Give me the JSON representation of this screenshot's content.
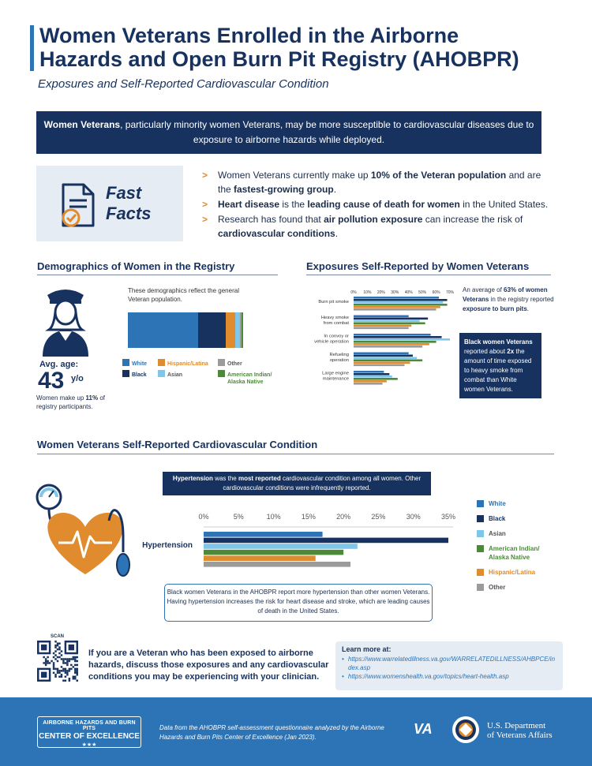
{
  "header": {
    "title_line1": "Women Veterans Enrolled in the Airborne",
    "title_line2": "Hazards and Open Burn Pit Registry (AHOBPR)",
    "subtitle": "Exposures and Self-Reported Cardiovascular Condition"
  },
  "intro": {
    "bold": "Women Veterans",
    "text": ", particularly minority women Veterans, may be more susceptible to cardiovascular diseases due to exposure to airborne hazards while deployed."
  },
  "fast_facts": {
    "title_line1": "Fast",
    "title_line2": "Facts",
    "icon": "document-check-icon",
    "items": [
      {
        "pre": "Women Veterans currently make up ",
        "bold1": "10% of the Veteran population",
        "mid": " and are the ",
        "bold2": "fastest-growing group",
        "post": "."
      },
      {
        "pre": "",
        "bold1": "Heart disease",
        "mid": " is the ",
        "bold2": "leading cause of death for women",
        "post": " in the United States."
      },
      {
        "pre": "Research has found that ",
        "bold1": "air pollution exposure",
        "mid": " can increase the risk of ",
        "bold2": "cardiovascular conditions",
        "post": "."
      }
    ]
  },
  "demographics": {
    "title": "Demographics of Women in the Registry",
    "note": "These demographics reflect the general Veteran population.",
    "avg_age_label": "Avg. age:",
    "avg_age_value": "43",
    "avg_age_unit": "y/o",
    "share_pre": "Women make up ",
    "share_bold": "11%",
    "share_post": " of registry participants.",
    "legend": {
      "white": "White",
      "black": "Black",
      "hispanic": "Hispanic/Latina",
      "asian": "Asian",
      "other": "Other",
      "american_indian_1": "American Indian/",
      "american_indian_2": "Alaska Native"
    },
    "colors": {
      "white": "#2c74b6",
      "black": "#17325e",
      "hispanic": "#e08b2d",
      "asian": "#7fc7ea",
      "other": "#9b9b9b",
      "american_indian": "#4c8a3a"
    }
  },
  "exposures": {
    "title": "Exposures Self-Reported by Women Veterans",
    "note1_pre": "An average of ",
    "note1_bold1": "63% of women Veterans",
    "note1_mid": " in the registry reported ",
    "note1_bold2": "exposure to burn pits",
    "note1_post": ".",
    "note2_bold": "Black women Veterans",
    "note2_text1": " reported about ",
    "note2_bold2": "2x",
    "note2_text2": " the amount of time exposed to heavy smoke from combat than White women Veterans."
  },
  "cardio": {
    "title": "Women Veterans Self-Reported Cardiovascular Condition",
    "callout_bold1": "Hypertension",
    "callout_text1": " was the ",
    "callout_bold2": "most reported",
    "callout_text2": " cardiovascular condition among all women. Other cardiovascular conditions were infrequently reported.",
    "footnote": "Black women Veterans in the AHOBPR report more hypertension than other women Veterans. Having hypertension increases the risk for heart disease and stroke, which are leading causes of death in the United States.",
    "legend": {
      "white": "White",
      "black": "Black",
      "asian": "Asian",
      "american_indian_1": "American Indian/",
      "american_indian_2": "Alaska Native",
      "hispanic": "Hispanic/Latina",
      "other": "Other"
    }
  },
  "cta": {
    "scan_label": "SCAN",
    "text": "If you are a Veteran who has been exposed to airborne hazards, discuss those exposures and any cardiovascular conditions you may be experiencing with your clinician.",
    "learn_title": "Learn more at:",
    "link1": "https://www.warrelatedillness.va.gov/WARRELATEDILLNESS/AHBPCE/index.asp",
    "link2": "https://www.womenshealth.va.gov/topics/heart-health.asp"
  },
  "footer": {
    "coe_line1": "AIRBORNE HAZARDS AND BURN PITS",
    "coe_line2": "CENTER OF EXCELLENCE",
    "coe_stars": "★★★",
    "source": "Data from the AHOBPR self-assessment questionnaire analyzed by the Airborne Hazards and Burn Pits Center of Excellence (Jan 2023).",
    "va": "VA",
    "dept_line1": "U.S. Department",
    "dept_line2": "of Veterans Affairs"
  },
  "chart_data": [
    {
      "type": "bar",
      "orientation": "horizontal-stacked",
      "categories": [
        "Demographics"
      ],
      "series": [
        {
          "name": "White",
          "values": [
            61
          ],
          "color": "#2c74b6"
        },
        {
          "name": "Black",
          "values": [
            24
          ],
          "color": "#17325e"
        },
        {
          "name": "Hispanic/Latina",
          "values": [
            8
          ],
          "color": "#e08b2d"
        },
        {
          "name": "Asian",
          "values": [
            4
          ],
          "color": "#7fc7ea"
        },
        {
          "name": "Other",
          "values": [
            2
          ],
          "color": "#9b9b9b"
        },
        {
          "name": "American Indian/ Alaska Native",
          "values": [
            1
          ],
          "color": "#4c8a3a"
        }
      ],
      "xlim": [
        0,
        100
      ]
    },
    {
      "type": "bar",
      "orientation": "horizontal",
      "categories": [
        "Burn pit smoke",
        "Heavy smoke from combat",
        "In convoy or vehicle operation",
        "Refueling operation",
        "Large engine maintenance"
      ],
      "category_lines": [
        [
          "Burn pit smoke"
        ],
        [
          "Heavy smoke",
          "from combat"
        ],
        [
          "In convoy or",
          "vehicle operation"
        ],
        [
          "Refueling",
          "operation"
        ],
        [
          "Large engine",
          "maintenance"
        ]
      ],
      "x_ticks": [
        "0%",
        "10%",
        "20%",
        "30%",
        "40%",
        "50%",
        "60%",
        "70%"
      ],
      "xlim": [
        0,
        70
      ],
      "series": [
        {
          "name": "White",
          "color": "#2c74b6",
          "values": [
            62,
            40,
            56,
            40,
            22
          ]
        },
        {
          "name": "Black",
          "color": "#17325e",
          "values": [
            68,
            54,
            64,
            43,
            26
          ]
        },
        {
          "name": "Asian",
          "color": "#7fc7ea",
          "values": [
            65,
            48,
            70,
            46,
            28
          ]
        },
        {
          "name": "American Indian/ Alaska Native",
          "color": "#4c8a3a",
          "values": [
            68,
            52,
            60,
            50,
            32
          ]
        },
        {
          "name": "Hispanic/Latina",
          "color": "#e08b2d",
          "values": [
            63,
            42,
            55,
            41,
            24
          ]
        },
        {
          "name": "Other",
          "color": "#9b9b9b",
          "values": [
            60,
            40,
            50,
            37,
            21
          ]
        }
      ]
    },
    {
      "type": "bar",
      "orientation": "horizontal",
      "categories": [
        "Hypertension"
      ],
      "x_ticks": [
        "0%",
        "5%",
        "10%",
        "15%",
        "20%",
        "25%",
        "30%",
        "35%"
      ],
      "xlim": [
        0,
        35
      ],
      "series": [
        {
          "name": "White",
          "color": "#2c74b6",
          "values": [
            17
          ]
        },
        {
          "name": "Black",
          "color": "#17325e",
          "values": [
            35
          ]
        },
        {
          "name": "Asian",
          "color": "#7fc7ea",
          "values": [
            22
          ]
        },
        {
          "name": "American Indian/ Alaska Native",
          "color": "#4c8a3a",
          "values": [
            20
          ]
        },
        {
          "name": "Hispanic/Latina",
          "color": "#e08b2d",
          "values": [
            16
          ]
        },
        {
          "name": "Other",
          "color": "#9b9b9b",
          "values": [
            21
          ]
        }
      ]
    }
  ]
}
